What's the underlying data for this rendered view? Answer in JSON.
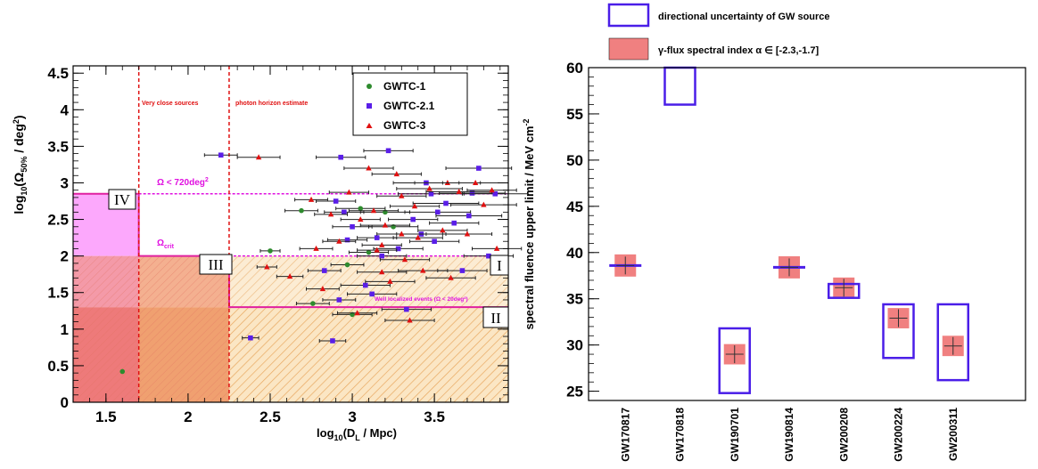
{
  "chart_data": [
    {
      "type": "scatter",
      "xlabel": "log10(DL / Mpc)",
      "xlabel_main": "log",
      "xlabel_sub": "10",
      "xlabel_rest": "(D",
      "xlabel_sub2": "L",
      "xlabel_tail": " / Mpc)",
      "ylabel": "log10(Ω50% / deg2)",
      "ylabel_main": "log",
      "ylabel_sub": "10",
      "ylabel_mid": "(Ω",
      "ylabel_sub2": "50%",
      "ylabel_tail": " / deg",
      "ylabel_sup": "2",
      "ylabel_close": ")",
      "xlim": [
        1.3,
        3.95
      ],
      "ylim": [
        0,
        4.6
      ],
      "xticks": [
        "1.5",
        "2",
        "2.5",
        "3",
        "3.5"
      ],
      "yticks": [
        "0",
        "0.5",
        "1",
        "1.5",
        "2",
        "2.5",
        "3",
        "3.5",
        "4",
        "4.5"
      ],
      "legend": [
        {
          "label": "GWTC-1",
          "color": "#2e8b2e",
          "marker": "circle"
        },
        {
          "label": "GWTC-2.1",
          "color": "#5a1ee8",
          "marker": "square"
        },
        {
          "label": "GWTC-3",
          "color": "#e01010",
          "marker": "triangle"
        }
      ],
      "vlines": [
        {
          "x": 1.7,
          "label": "Very close sources",
          "color": "#e01010"
        },
        {
          "x": 2.25,
          "label": "photon horizon estimate",
          "color": "#e01010"
        }
      ],
      "hlines": [
        {
          "y": 2.85,
          "label": "Ω < 720deg",
          "label_sup": "2",
          "color": "#e010e0"
        },
        {
          "y": 2.0,
          "label": "Ω",
          "label_sub": "crit",
          "color": "#e010e0"
        },
        {
          "y": 1.3,
          "label": "Well localized events (Ω < 20deg²)",
          "color": "#e010e0"
        }
      ],
      "regions": [
        {
          "label": "IV",
          "x0": 1.3,
          "x1": 1.7,
          "y0": 0,
          "y1": 2.85,
          "color": "#ff66ff"
        },
        {
          "label": "III",
          "x0": 1.7,
          "x1": 2.25,
          "y0": 0,
          "y1": 2.0,
          "color": "#f29a6a"
        },
        {
          "label": "I",
          "x0": 2.25,
          "x1": 3.95,
          "y0": 1.3,
          "y1": 2.0,
          "color": "#f4c77a"
        },
        {
          "label": "II",
          "x0": 2.25,
          "x1": 3.95,
          "y0": 0,
          "y1": 1.3,
          "color": "#f4c77a"
        }
      ],
      "series": [
        {
          "name": "GWTC-1",
          "points": [
            [
              1.6,
              0.42,
              0
            ],
            [
              2.5,
              2.07,
              0.06
            ],
            [
              2.69,
              2.62,
              0.1
            ],
            [
              2.76,
              1.35,
              0.1
            ],
            [
              2.97,
              1.88,
              0.1
            ],
            [
              3.0,
              1.2,
              0.12
            ],
            [
              3.05,
              2.65,
              0.15
            ],
            [
              3.1,
              2.05,
              0.12
            ],
            [
              3.2,
              2.6,
              0.15
            ],
            [
              3.25,
              2.4,
              0.15
            ]
          ]
        },
        {
          "name": "GWTC-2.1",
          "points": [
            [
              2.2,
              3.38,
              0.1
            ],
            [
              2.38,
              0.88,
              0.05
            ],
            [
              2.88,
              0.84,
              0.08
            ],
            [
              2.92,
              1.4,
              0.1
            ],
            [
              2.93,
              3.35,
              0.15
            ],
            [
              2.95,
              2.6,
              0.12
            ],
            [
              2.97,
              2.22,
              0.12
            ],
            [
              2.83,
              1.8,
              0.1
            ],
            [
              3.0,
              2.4,
              0.12
            ],
            [
              3.08,
              1.6,
              0.15
            ],
            [
              3.12,
              1.48,
              0.15
            ],
            [
              3.15,
              2.25,
              0.12
            ],
            [
              3.18,
              2.0,
              0.15
            ],
            [
              3.22,
              3.44,
              0.15
            ],
            [
              3.28,
              2.1,
              0.15
            ],
            [
              3.33,
              1.27,
              0.15
            ],
            [
              3.37,
              2.5,
              0.15
            ],
            [
              3.42,
              2.3,
              0.15
            ],
            [
              3.45,
              3.0,
              0.2
            ],
            [
              3.48,
              2.85,
              0.2
            ],
            [
              3.5,
              2.2,
              0.15
            ],
            [
              3.52,
              2.6,
              0.2
            ],
            [
              3.57,
              2.72,
              0.2
            ],
            [
              3.62,
              2.45,
              0.15
            ],
            [
              3.67,
              1.8,
              0.15
            ],
            [
              3.71,
              2.55,
              0.2
            ],
            [
              3.73,
              2.86,
              0.2
            ],
            [
              3.77,
              3.2,
              0.2
            ],
            [
              3.83,
              2.0,
              0.15
            ],
            [
              3.87,
              2.85,
              0.2
            ],
            [
              2.9,
              2.75,
              0.12
            ]
          ]
        },
        {
          "name": "GWTC-3",
          "points": [
            [
              2.43,
              3.35,
              0.13
            ],
            [
              2.48,
              1.85,
              0.06
            ],
            [
              2.62,
              1.72,
              0.08
            ],
            [
              2.75,
              2.77,
              0.1
            ],
            [
              2.78,
              2.1,
              0.1
            ],
            [
              2.82,
              1.55,
              0.1
            ],
            [
              2.87,
              2.57,
              0.1
            ],
            [
              2.92,
              2.2,
              0.1
            ],
            [
              2.98,
              2.87,
              0.12
            ],
            [
              3.03,
              1.22,
              0.12
            ],
            [
              3.05,
              2.5,
              0.12
            ],
            [
              3.1,
              3.2,
              0.15
            ],
            [
              3.13,
              2.62,
              0.15
            ],
            [
              3.15,
              2.08,
              0.12
            ],
            [
              3.18,
              1.78,
              0.15
            ],
            [
              3.2,
              2.42,
              0.15
            ],
            [
              3.23,
              1.65,
              0.15
            ],
            [
              3.27,
              3.12,
              0.15
            ],
            [
              3.3,
              2.82,
              0.15
            ],
            [
              3.32,
              1.95,
              0.15
            ],
            [
              3.35,
              1.12,
              0.15
            ],
            [
              3.38,
              2.68,
              0.15
            ],
            [
              3.4,
              2.25,
              0.15
            ],
            [
              3.43,
              1.8,
              0.15
            ],
            [
              3.47,
              2.92,
              0.2
            ],
            [
              3.55,
              2.35,
              0.15
            ],
            [
              3.58,
              3.0,
              0.2
            ],
            [
              3.6,
              1.7,
              0.15
            ],
            [
              3.65,
              2.88,
              0.2
            ],
            [
              3.7,
              2.3,
              0.15
            ],
            [
              3.75,
              3.0,
              0.2
            ],
            [
              3.8,
              2.7,
              0.2
            ],
            [
              3.85,
              2.9,
              0.15
            ],
            [
              3.88,
              2.1,
              0.15
            ],
            [
              3.18,
              2.15,
              0.12
            ],
            [
              3.3,
              2.3,
              0.15
            ]
          ]
        }
      ]
    },
    {
      "type": "box",
      "ylabel": "spectral fluence upper limit / MeV cm",
      "ylabel_sup": "-2",
      "ylim": [
        24,
        60
      ],
      "yticks": [
        "25",
        "30",
        "35",
        "40",
        "45",
        "50",
        "55",
        "60"
      ],
      "legend": [
        {
          "label": "directional uncertainty of GW source",
          "color": "#4a1ee8",
          "style": "box"
        },
        {
          "label": "γ-flux spectral index  α ∈ [-2.3,-1.7]",
          "color": "#f08080",
          "style": "fill"
        }
      ],
      "categories": [
        "GW170817",
        "GW170818",
        "GW190701",
        "GW190814",
        "GW200208",
        "GW200224",
        "GW200311"
      ],
      "values": [
        38.6,
        null,
        29.0,
        38.4,
        36.2,
        32.9,
        29.9
      ],
      "boxes": [
        [
          38.4,
          38.8
        ],
        [
          56.0,
          61.0
        ],
        [
          24.8,
          31.8
        ],
        [
          38.2,
          38.6
        ],
        [
          35.1,
          36.6
        ],
        [
          28.6,
          34.4
        ],
        [
          26.2,
          34.4
        ]
      ],
      "index_band": [
        [
          37.4,
          39.8
        ],
        [
          null,
          null
        ],
        [
          27.9,
          30.1
        ],
        [
          37.2,
          39.6
        ],
        [
          35.1,
          37.3
        ],
        [
          31.8,
          34.0
        ],
        [
          28.8,
          31.0
        ]
      ]
    }
  ]
}
